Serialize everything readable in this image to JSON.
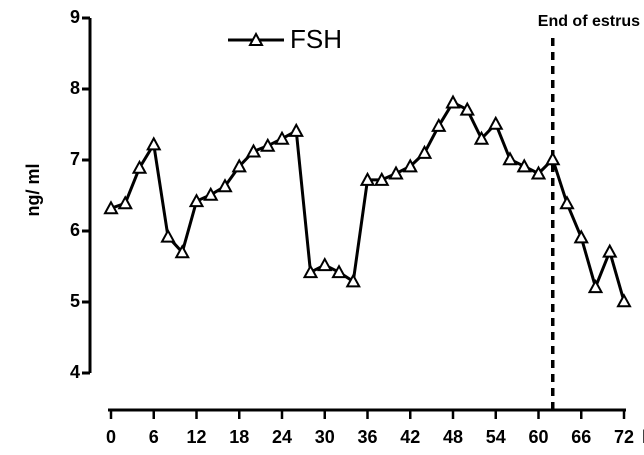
{
  "chart_data": {
    "type": "line",
    "x": [
      0,
      2,
      4,
      6,
      8,
      10,
      12,
      14,
      16,
      18,
      20,
      22,
      24,
      26,
      28,
      30,
      32,
      34,
      36,
      38,
      40,
      42,
      44,
      46,
      48,
      50,
      52,
      54,
      56,
      58,
      60,
      62,
      64,
      66,
      68,
      70,
      72
    ],
    "series": [
      {
        "name": "FSH",
        "color": "#000000",
        "values": [
          6.32,
          6.39,
          6.89,
          7.22,
          5.92,
          5.7,
          6.42,
          6.51,
          6.63,
          6.91,
          7.12,
          7.2,
          7.3,
          7.41,
          5.42,
          5.52,
          5.42,
          5.29,
          6.72,
          6.72,
          6.81,
          6.91,
          7.1,
          7.48,
          7.81,
          7.71,
          7.3,
          7.51,
          7.01,
          6.91,
          6.81,
          7.01,
          6.39,
          5.91,
          5.21,
          5.71,
          5.01
        ]
      }
    ],
    "ylabel": "ng/ ml",
    "xlabel": "h",
    "xlim": [
      0,
      72
    ],
    "xticks": [
      0,
      6,
      12,
      18,
      24,
      30,
      36,
      42,
      48,
      54,
      60,
      66,
      72
    ],
    "ylim": [
      4,
      9
    ],
    "yticks": [
      4,
      5,
      6,
      7,
      8,
      9
    ],
    "annotations": [
      {
        "text": "End of estrus",
        "x": 62
      }
    ],
    "legend": "top"
  }
}
